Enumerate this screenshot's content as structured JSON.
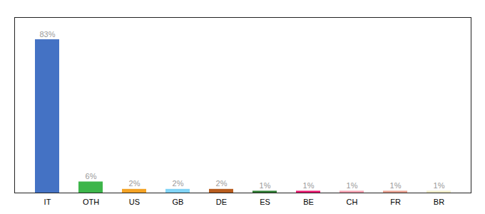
{
  "chart_data": {
    "type": "bar",
    "categories": [
      "IT",
      "OTH",
      "US",
      "GB",
      "DE",
      "ES",
      "BE",
      "CH",
      "FR",
      "BR"
    ],
    "values": [
      83,
      6,
      2,
      2,
      2,
      1,
      1,
      1,
      1,
      1
    ],
    "value_labels": [
      "83%",
      "6%",
      "2%",
      "2%",
      "2%",
      "1%",
      "1%",
      "1%",
      "1%",
      "1%"
    ],
    "colors": [
      "#4472c4",
      "#3db54a",
      "#f4a325",
      "#81d4f7",
      "#b85c1e",
      "#2e7d32",
      "#e8186e",
      "#f4a0b0",
      "#e8a090",
      "#f0ecc8"
    ],
    "ylim": [
      0,
      95
    ],
    "data_labels": true,
    "tick_labels": "x",
    "grid": false
  }
}
